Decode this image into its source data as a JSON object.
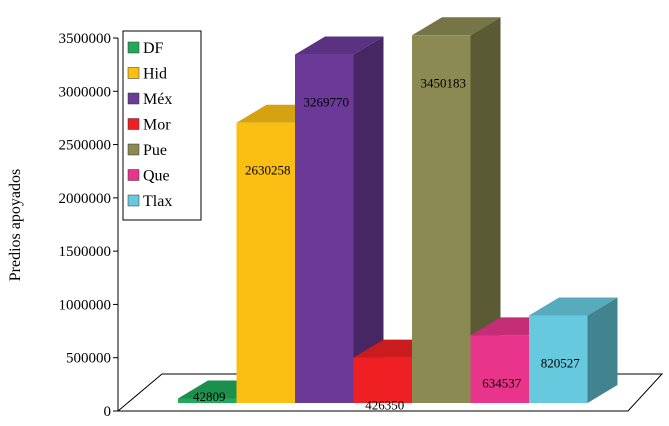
{
  "chart_data": {
    "type": "bar",
    "style": "3d",
    "title": "",
    "xlabel": "",
    "ylabel": "Predios apoyados",
    "ylim": [
      0,
      3500000
    ],
    "yticks": [
      0,
      500000,
      1000000,
      1500000,
      2000000,
      2500000,
      3000000,
      3500000
    ],
    "ytick_labels": [
      "0",
      "500000",
      "1000000",
      "1500000",
      "2000000",
      "2500000",
      "3000000",
      "3500000"
    ],
    "grid": false,
    "legend_position": "top-left",
    "categories": [
      "DF",
      "Hid",
      "Méx",
      "Mor",
      "Pue",
      "Que",
      "Tlax"
    ],
    "values": [
      42809,
      2630258,
      3269770,
      426350,
      3450183,
      634537,
      820527
    ],
    "data_labels": [
      "42809",
      "2630258",
      "3269770",
      "426350",
      "3450183",
      "634537",
      "820527"
    ],
    "colors": [
      "#22a85a",
      "#fbbf14",
      "#6b3a98",
      "#ee2024",
      "#8b8a52",
      "#e8358b",
      "#66c9de"
    ]
  }
}
